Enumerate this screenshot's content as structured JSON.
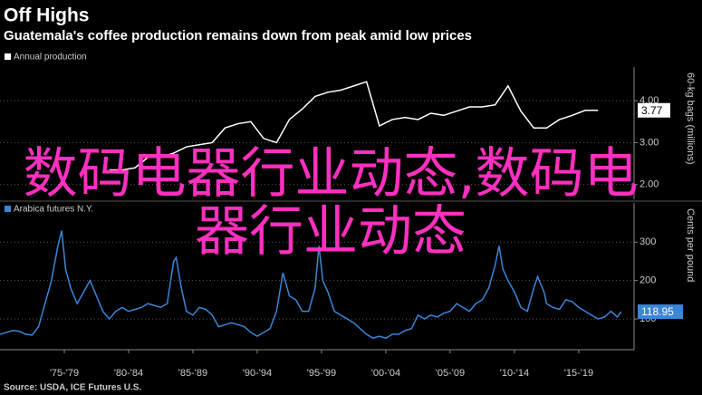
{
  "title": "Off Highs",
  "subtitle": "Guatemala's coffee production remains down from peak amid low prices",
  "source": "Source: USDA, ICE Futures U.S.",
  "overlay": "数码电器行业动态,数码电器行业动态",
  "chart_data": [
    {
      "type": "line",
      "y2label": "60-kg bags (millions)",
      "xlim": [
        1972.5,
        2021.8
      ],
      "y2lim": [
        1.65,
        4.8
      ],
      "y2ticks": [
        {
          "value": 2,
          "label": "2.00"
        },
        {
          "value": 3,
          "label": "3.00"
        },
        {
          "value": 4,
          "label": "4.00"
        }
      ],
      "grid": true,
      "series": [
        {
          "name": "Annual production",
          "color": "#ffffff",
          "axis": "y2",
          "x": [
            1981,
            1982,
            1983,
            1984,
            1985,
            1986,
            1987,
            1988,
            1989,
            1990,
            1991,
            1992,
            1993,
            1994,
            1995,
            1996,
            1997,
            1998,
            1999,
            2000,
            2001,
            2002,
            2003,
            2004,
            2005,
            2006,
            2007,
            2008,
            2009,
            2010,
            2011,
            2012,
            2013,
            2014,
            2015,
            2016,
            2017,
            2018,
            2019
          ],
          "values": [
            2.35,
            2.35,
            2.4,
            2.65,
            2.65,
            2.75,
            2.9,
            2.95,
            3.0,
            3.35,
            3.45,
            3.5,
            3.1,
            3.0,
            3.55,
            3.8,
            4.1,
            4.2,
            4.25,
            4.35,
            4.45,
            3.4,
            3.55,
            3.6,
            3.55,
            3.7,
            3.65,
            3.75,
            3.85,
            3.85,
            3.9,
            4.35,
            3.75,
            3.35,
            3.35,
            3.55,
            3.65,
            3.77,
            3.77
          ]
        }
      ]
    },
    {
      "type": "line",
      "y2label": "Cents per pound",
      "xlim": [
        1972.5,
        2021.8
      ],
      "y2lim": [
        20,
        402
      ],
      "y2ticks": [
        100,
        200,
        300
      ],
      "grid": true,
      "xticks": [
        {
          "value": 1977.5,
          "label": "'75-'79"
        },
        {
          "value": 1982.5,
          "label": "'80-'84"
        },
        {
          "value": 1987.5,
          "label": "'85-'89"
        },
        {
          "value": 1992.5,
          "label": "'90-'94"
        },
        {
          "value": 1997.5,
          "label": "'95-'99"
        },
        {
          "value": 2002.5,
          "label": "'00-'04"
        },
        {
          "value": 2007.5,
          "label": "'05-'09"
        },
        {
          "value": 2012.5,
          "label": "'10-'14"
        },
        {
          "value": 2017.5,
          "label": "'15-'19"
        }
      ],
      "series": [
        {
          "name": "Arabica futures N.Y.",
          "color": "#3a86d8",
          "axis": "y2",
          "x": [
            1972.5,
            1973,
            1973.5,
            1974,
            1974.5,
            1975,
            1975.5,
            1976,
            1976.5,
            1977,
            1977.3,
            1977.6,
            1978,
            1978.5,
            1979,
            1979.5,
            1980,
            1980.5,
            1981,
            1981.5,
            1982,
            1982.5,
            1983,
            1983.5,
            1984,
            1984.5,
            1985,
            1985.5,
            1986,
            1986.2,
            1986.6,
            1987,
            1987.5,
            1988,
            1988.5,
            1989,
            1989.5,
            1990,
            1990.5,
            1991,
            1991.5,
            1992,
            1992.5,
            1993,
            1993.5,
            1994,
            1994.5,
            1995,
            1995.5,
            1996,
            1996.5,
            1997,
            1997.3,
            1997.6,
            1998,
            1998.5,
            1999,
            1999.5,
            2000,
            2000.5,
            2001,
            2001.5,
            2002,
            2002.5,
            2003,
            2003.5,
            2004,
            2004.5,
            2005,
            2005.5,
            2006,
            2006.5,
            2007,
            2007.5,
            2008,
            2008.5,
            2009,
            2009.5,
            2010,
            2010.5,
            2011,
            2011.3,
            2011.6,
            2012,
            2012.5,
            2013,
            2013.5,
            2014,
            2014.3,
            2014.8,
            2015,
            2015.5,
            2016,
            2016.5,
            2017,
            2017.5,
            2018,
            2018.5,
            2019,
            2019.5,
            2020,
            2020.5,
            2020.8
          ],
          "values": [
            60,
            65,
            70,
            68,
            60,
            58,
            80,
            140,
            200,
            290,
            330,
            230,
            180,
            140,
            170,
            200,
            160,
            120,
            100,
            120,
            130,
            120,
            125,
            130,
            140,
            135,
            130,
            140,
            250,
            260,
            180,
            120,
            110,
            130,
            125,
            110,
            80,
            85,
            90,
            85,
            80,
            65,
            55,
            65,
            75,
            120,
            220,
            160,
            150,
            120,
            120,
            180,
            290,
            200,
            170,
            120,
            110,
            100,
            90,
            75,
            60,
            50,
            55,
            50,
            60,
            60,
            70,
            75,
            110,
            100,
            110,
            105,
            115,
            120,
            140,
            130,
            120,
            140,
            150,
            180,
            240,
            290,
            230,
            200,
            170,
            130,
            120,
            180,
            210,
            170,
            140,
            130,
            125,
            150,
            145,
            130,
            120,
            110,
            100,
            105,
            120,
            105,
            118.95
          ]
        }
      ]
    }
  ]
}
